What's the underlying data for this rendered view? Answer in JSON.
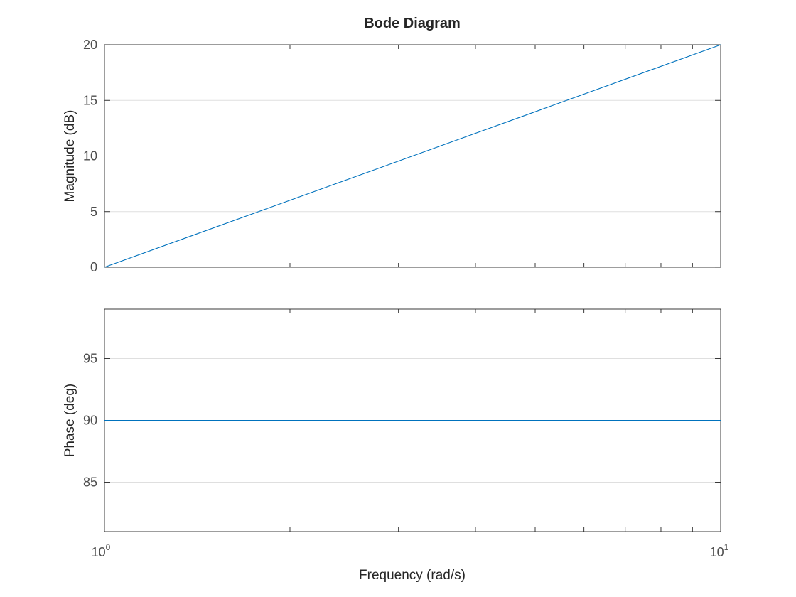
{
  "chart_data": {
    "type": "line",
    "title": "Bode Diagram",
    "xlabel": "Frequency (rad/s)",
    "x_scale": "log",
    "xlim": [
      1,
      10
    ],
    "x_tick_labels": [
      {
        "base": "10",
        "exp": "0"
      },
      {
        "base": "10",
        "exp": "1"
      }
    ],
    "grid": true,
    "line_color": "#0072BD",
    "panels": [
      {
        "name": "magnitude",
        "ylabel": "Magnitude (dB)",
        "ylim": [
          0,
          20
        ],
        "y_ticks": [
          0,
          5,
          10,
          15,
          20
        ],
        "series": [
          {
            "x": [
              1,
              10
            ],
            "y": [
              0,
              20
            ]
          }
        ]
      },
      {
        "name": "phase",
        "ylabel": "Phase (deg)",
        "ylim": [
          81,
          99
        ],
        "y_ticks": [
          85,
          90,
          95
        ],
        "series": [
          {
            "x": [
              1,
              10
            ],
            "y": [
              90,
              90
            ]
          }
        ]
      }
    ]
  }
}
